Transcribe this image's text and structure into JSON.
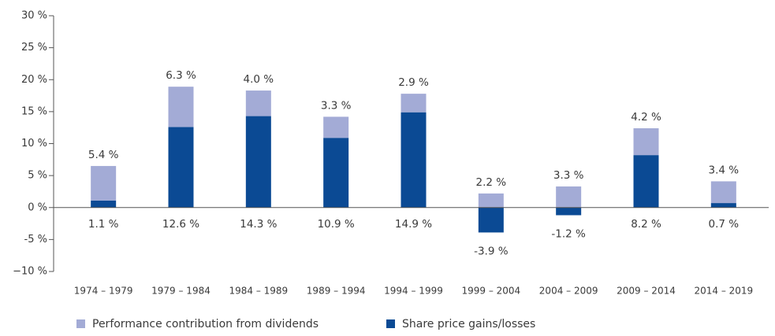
{
  "chart_data": {
    "type": "stacked_bar",
    "categories": [
      "1974 – 1979",
      "1979 – 1984",
      "1984 – 1989",
      "1989 – 1994",
      "1994 – 1999",
      "1999 – 2004",
      "2004 – 2009",
      "2009 – 2014",
      "2014 – 2019"
    ],
    "series": [
      {
        "name": "Share price gains/losses",
        "color": "#0b4a94",
        "values": [
          1.1,
          12.6,
          14.3,
          10.9,
          14.9,
          -3.9,
          -1.2,
          8.2,
          0.7
        ],
        "value_labels": [
          "1.1 %",
          "12.6 %",
          "14.3 %",
          "10.9 %",
          "14.9 %",
          "-3.9 %",
          "-1.2 %",
          "8.2 %",
          "0.7 %"
        ]
      },
      {
        "name": "Performance contribution from dividends",
        "color": "#a3abd6",
        "values": [
          5.4,
          6.3,
          4.0,
          3.3,
          2.9,
          2.2,
          3.3,
          4.2,
          3.4
        ],
        "value_labels": [
          "5.4 %",
          "6.3 %",
          "4.0 %",
          "3.3 %",
          "2.9 %",
          "2.2 %",
          "3.3 %",
          "4.2 %",
          "3.4 %"
        ]
      }
    ],
    "ylim": [
      -10,
      30
    ],
    "yticks": [
      {
        "value": -10,
        "label": "−10 %"
      },
      {
        "value": -5,
        "label": "-5 %"
      },
      {
        "value": 0,
        "label": "0 %"
      },
      {
        "value": 5,
        "label": "5 %"
      },
      {
        "value": 10,
        "label": "10 %"
      },
      {
        "value": 15,
        "label": "15 %"
      },
      {
        "value": 20,
        "label": "20 %"
      },
      {
        "value": 25,
        "label": "25 %"
      },
      {
        "value": 30,
        "label": "30 %"
      }
    ],
    "legend": "bottom"
  }
}
